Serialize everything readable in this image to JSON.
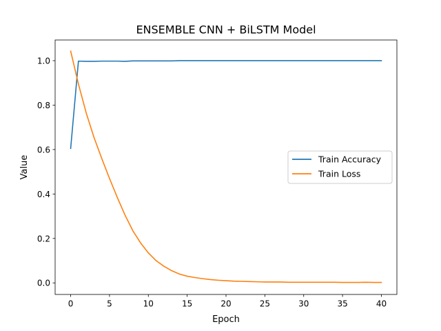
{
  "chart_data": {
    "type": "line",
    "title": "ENSEMBLE CNN + BiLSTM Model",
    "xlabel": "Epoch",
    "ylabel": "Value",
    "xlim": [
      -2,
      42
    ],
    "ylim": [
      -0.052,
      1.093
    ],
    "x_ticks": [
      0,
      5,
      10,
      15,
      20,
      25,
      30,
      35,
      40
    ],
    "x_tick_labels": [
      "0",
      "5",
      "10",
      "15",
      "20",
      "25",
      "30",
      "35",
      "40"
    ],
    "y_ticks": [
      0.0,
      0.2,
      0.4,
      0.6,
      0.8,
      1.0
    ],
    "y_tick_labels": [
      "0.0",
      "0.2",
      "0.4",
      "0.6",
      "0.8",
      "1.0"
    ],
    "grid": false,
    "legend_position": "center-right",
    "x": [
      0,
      1,
      2,
      3,
      4,
      5,
      6,
      7,
      8,
      9,
      10,
      11,
      12,
      13,
      14,
      15,
      16,
      17,
      18,
      19,
      20,
      21,
      22,
      23,
      24,
      25,
      26,
      27,
      28,
      29,
      30,
      31,
      32,
      33,
      34,
      35,
      36,
      37,
      38,
      39,
      40
    ],
    "series": [
      {
        "name": "Train Accuracy",
        "color": "#1f77b4",
        "values": [
          0.605,
          0.998,
          0.997,
          0.997,
          0.998,
          0.998,
          0.998,
          0.997,
          0.999,
          0.999,
          0.999,
          0.999,
          0.999,
          0.999,
          1.0,
          1.0,
          1.0,
          1.0,
          1.0,
          1.0,
          1.0,
          1.0,
          1.0,
          1.0,
          1.0,
          1.0,
          1.0,
          1.0,
          1.0,
          1.0,
          1.0,
          1.0,
          1.0,
          1.0,
          1.0,
          1.0,
          1.0,
          1.0,
          1.0,
          1.0,
          1.0
        ]
      },
      {
        "name": "Train Loss",
        "color": "#ff7f0e",
        "values": [
          1.043,
          0.895,
          0.765,
          0.655,
          0.56,
          0.47,
          0.385,
          0.305,
          0.235,
          0.18,
          0.135,
          0.1,
          0.075,
          0.055,
          0.04,
          0.03,
          0.024,
          0.019,
          0.015,
          0.012,
          0.01,
          0.008,
          0.007,
          0.006,
          0.005,
          0.004,
          0.004,
          0.004,
          0.003,
          0.003,
          0.003,
          0.003,
          0.003,
          0.003,
          0.003,
          0.002,
          0.002,
          0.002,
          0.003,
          0.002,
          0.002
        ]
      }
    ]
  }
}
